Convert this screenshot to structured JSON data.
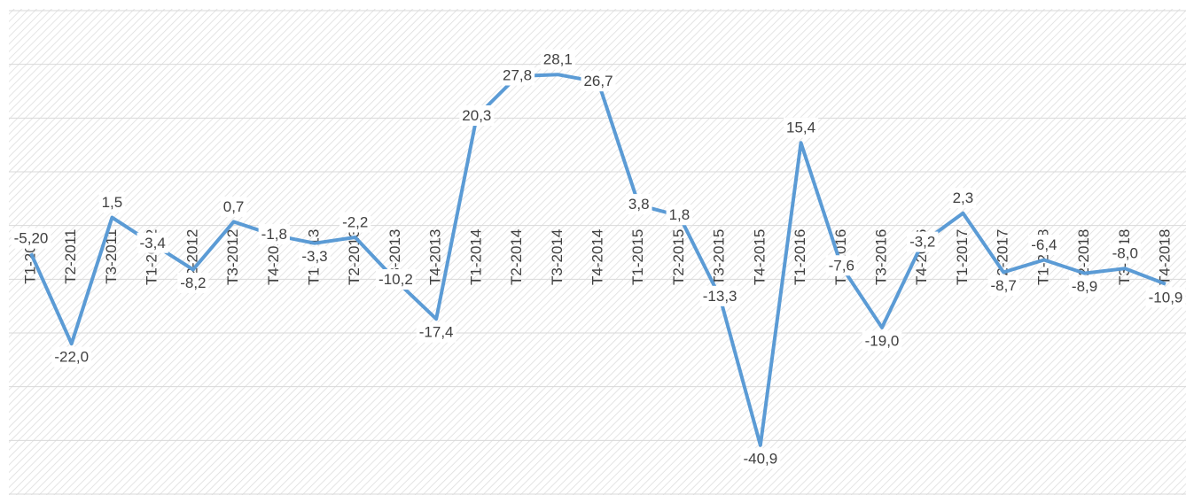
{
  "chart_data": {
    "type": "line",
    "categories": [
      "T1-2011",
      "T2-2011",
      "T3-2011",
      "T1-2012",
      "T2-2012",
      "T3-2012",
      "T4-2012",
      "T1-2013",
      "T2-2013",
      "T3-2013",
      "T4-2013",
      "T1-2014",
      "T2-2014",
      "T3-2014",
      "T4-2014",
      "T1-2015",
      "T2-2015",
      "T3-2015",
      "T4-2015",
      "T1-2016",
      "T2-2016",
      "T3-2016",
      "T4-2016",
      "T1-2017",
      "T2-2017",
      "T1-2018",
      "T2-2018",
      "T3-2018",
      "T4-2018"
    ],
    "series": [
      {
        "color": "#5b9bd5",
        "values": [
          -5.2,
          -22.0,
          1.5,
          -3.4,
          -8.2,
          0.7,
          -1.8,
          -3.3,
          -2.2,
          -10.2,
          -17.4,
          20.3,
          27.8,
          28.1,
          26.7,
          3.8,
          1.8,
          -13.3,
          -40.9,
          15.4,
          -7.6,
          -19.0,
          -3.2,
          2.3,
          -8.7,
          -6.4,
          -8.9,
          -8.0,
          -10.9
        ],
        "value_labels": [
          "-5,20",
          "-22,0",
          "1,5",
          "-3,4",
          "-8,2",
          "0,7",
          "-1,8",
          "-3,3",
          "-2,2",
          "-10,2",
          "-17,4",
          "20,3",
          "27,8",
          "28,1",
          "26,7",
          "3,8",
          "1,8",
          "-13,3",
          "-40,9",
          "15,4",
          "-7,6",
          "-19,0",
          "-3,2",
          "2,3",
          "-8,7",
          "-6,4",
          "-8,9",
          "-8,0",
          "-10,9"
        ]
      }
    ],
    "ylim": [
      -50,
      40
    ],
    "yticks": [
      -50,
      -40,
      -30,
      -20,
      -10,
      0,
      10,
      20,
      30,
      40
    ],
    "grid": true
  }
}
